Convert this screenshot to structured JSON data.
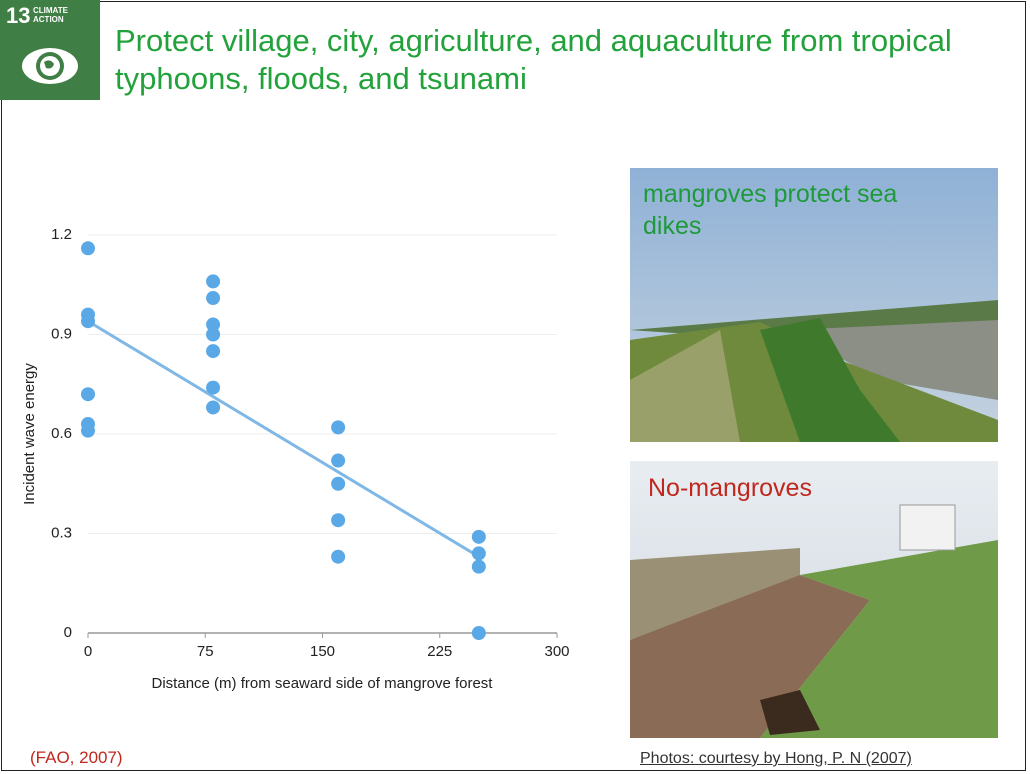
{
  "logo": {
    "number": "13",
    "label": "CLIMATE ACTION"
  },
  "title": "Protect village, city, agriculture, and aquaculture from tropical typhoons, floods, and tsunami",
  "chart_data": {
    "type": "scatter",
    "xlabel": "Distance (m) from seaward side of mangrove forest",
    "ylabel": "Incident wave energy",
    "xlim": [
      0,
      300
    ],
    "xticks": [
      0,
      75,
      150,
      225,
      300
    ],
    "ylim": [
      0,
      1.2
    ],
    "yticks": [
      0,
      0.3,
      0.6,
      0.9,
      1.2
    ],
    "grid": true,
    "series": [
      {
        "color": "#5aa9e6",
        "x": [
          0,
          0,
          0,
          0,
          0,
          0,
          80,
          80,
          80,
          80,
          80,
          80,
          80,
          160,
          160,
          160,
          160,
          160,
          250,
          250,
          250,
          250
        ],
        "values": [
          1.16,
          0.96,
          0.94,
          0.72,
          0.63,
          0.61,
          1.06,
          1.01,
          0.93,
          0.9,
          0.85,
          0.74,
          0.68,
          0.62,
          0.52,
          0.45,
          0.34,
          0.23,
          0.29,
          0.24,
          0.2,
          0.0
        ]
      }
    ],
    "trendline": {
      "color": "#7fb8e6",
      "x": [
        0,
        250
      ],
      "values": [
        0.94,
        0.23
      ]
    }
  },
  "photos": [
    {
      "caption": "mangroves protect sea dikes",
      "color": "#1e9a3a"
    },
    {
      "caption": "No-mangroves",
      "color": "#c0281e"
    }
  ],
  "source": "(FAO, 2007)",
  "credit": "Photos: courtesy by Hong, P. N (2007)"
}
